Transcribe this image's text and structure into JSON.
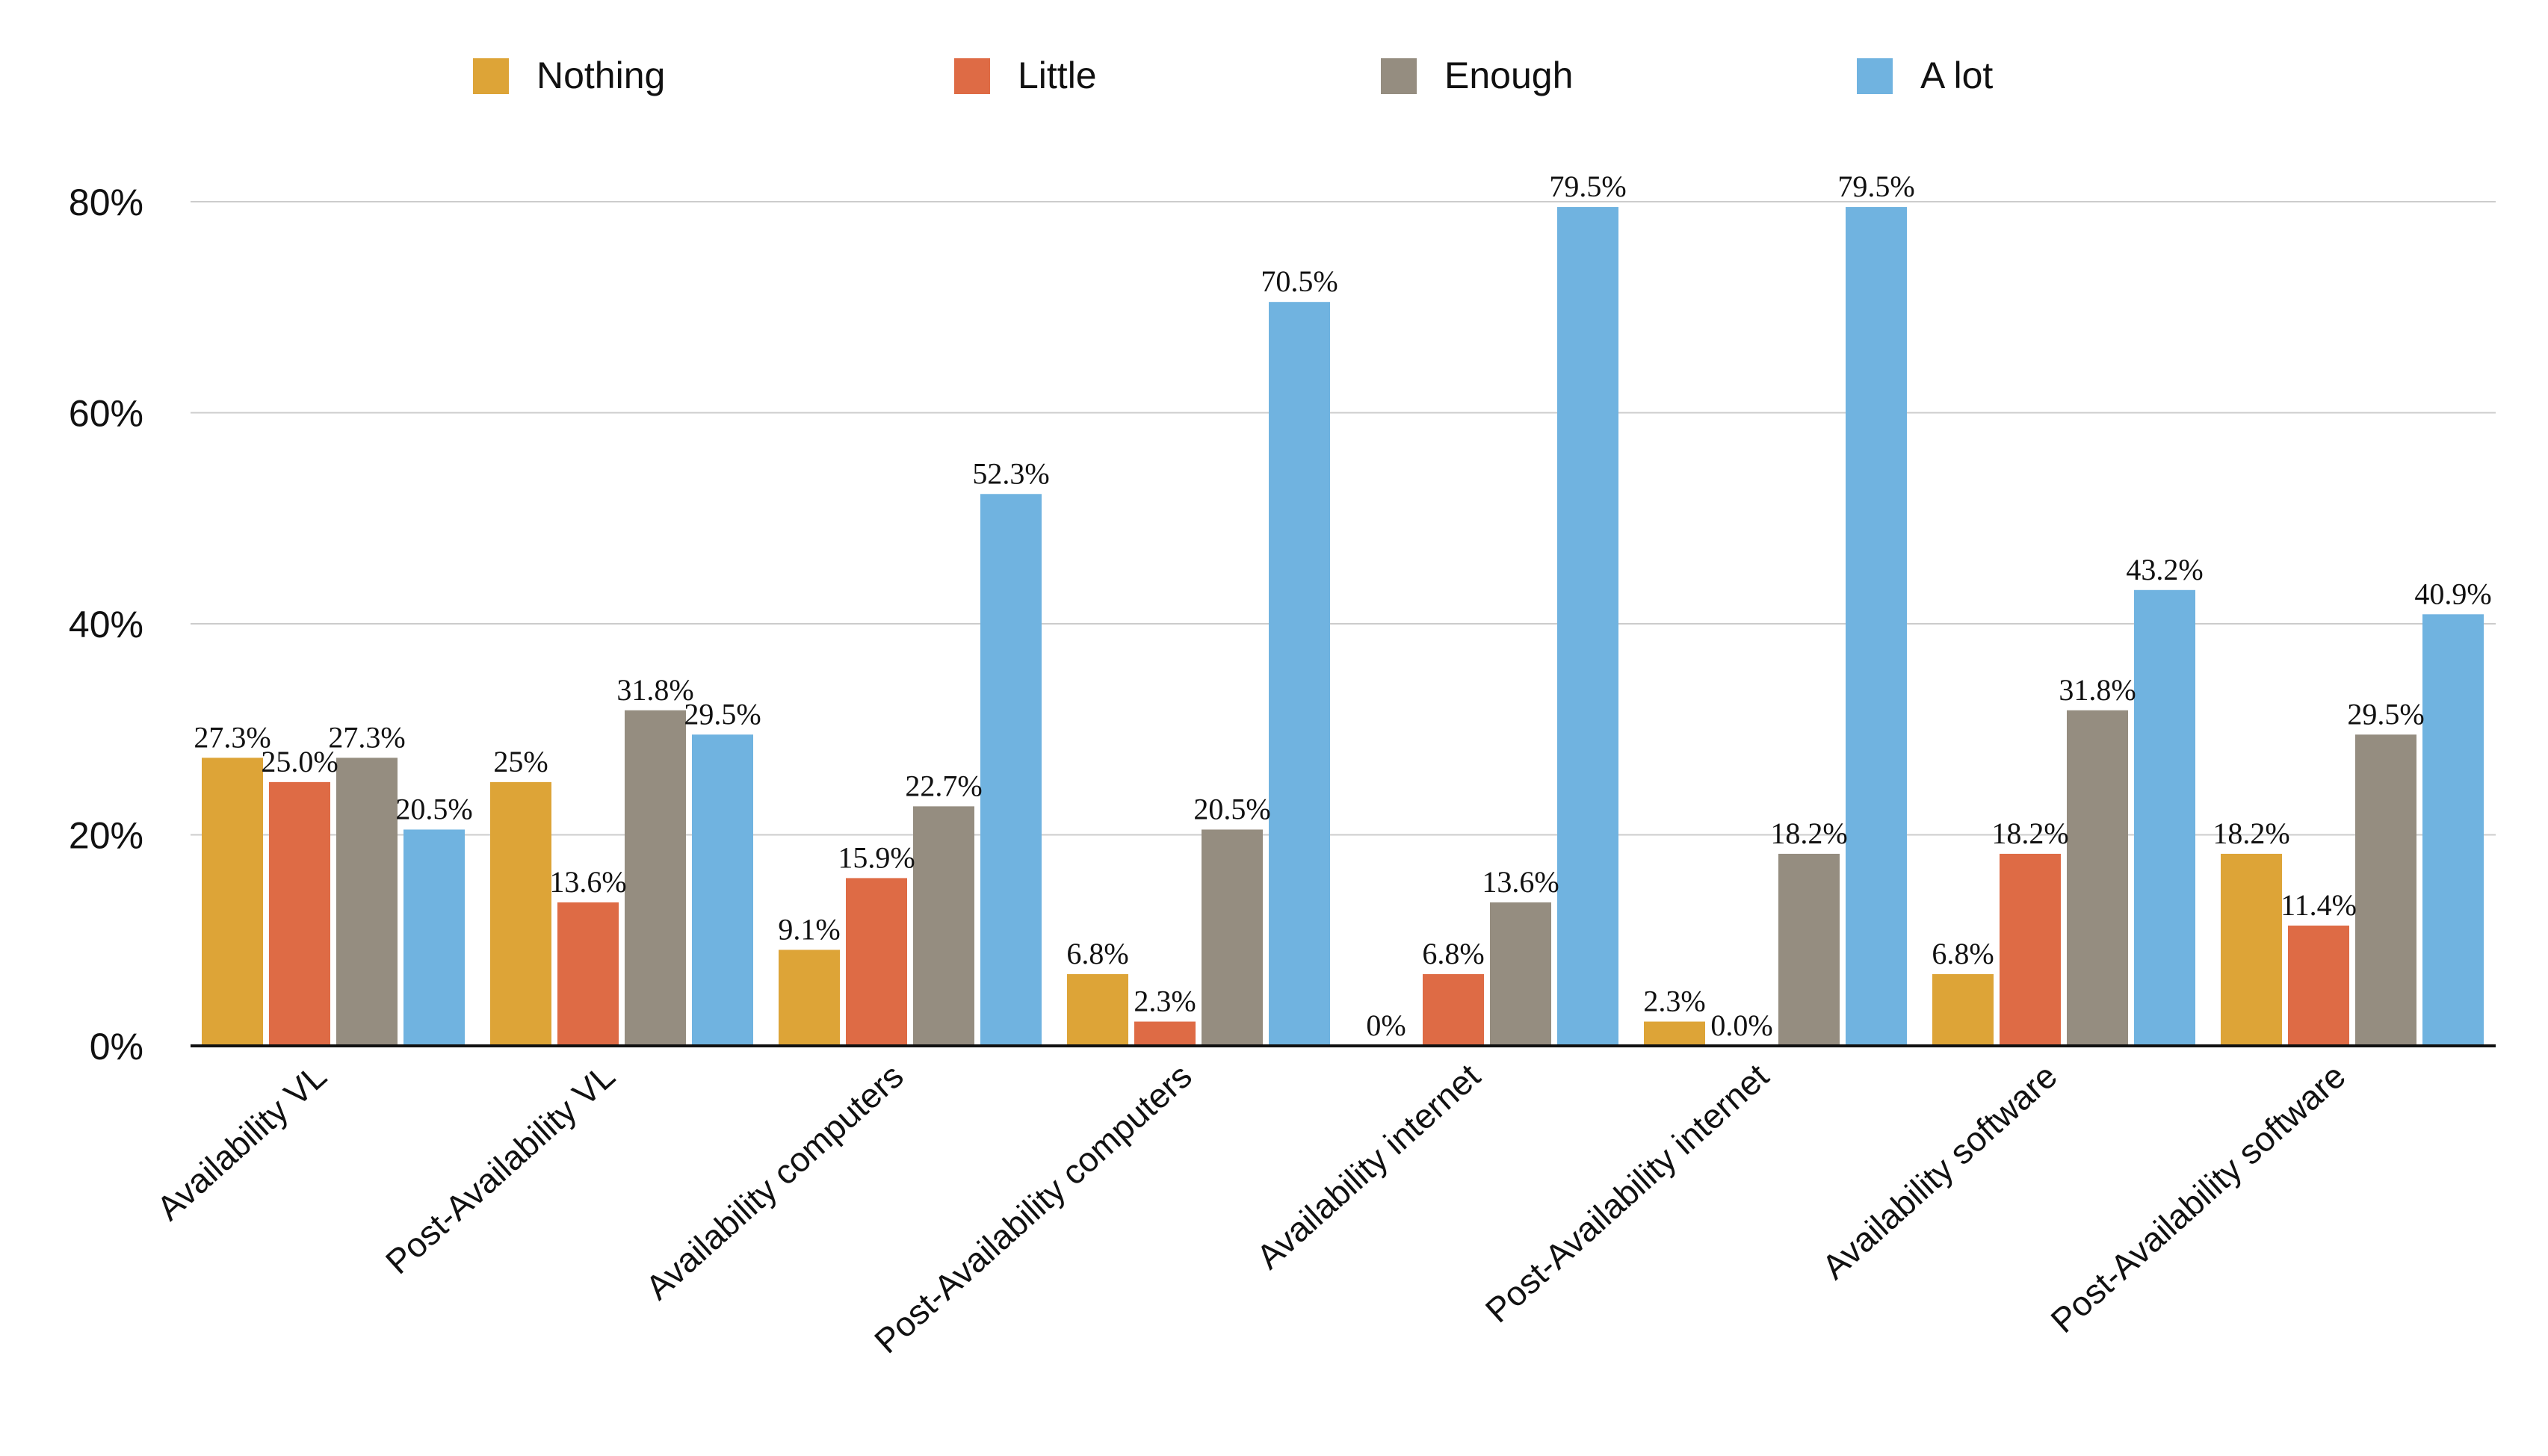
{
  "chart_data": {
    "type": "bar",
    "categories": [
      "Availability VL",
      "Post-Availability VL",
      "Availability computers",
      "Post-Availability computers",
      "Availability internet",
      "Post-Availability internet",
      "Availability software",
      "Post-Availability software"
    ],
    "series": [
      {
        "name": "Nothing",
        "color": "#DDA437",
        "values": [
          27.3,
          25,
          9.1,
          6.8,
          0,
          2.3,
          6.8,
          18.2
        ],
        "labels": [
          "27.3%",
          "25%",
          "9.1%",
          "6.8%",
          "0%",
          "2.3%",
          "6.8%",
          "18.2%"
        ]
      },
      {
        "name": "Little",
        "color": "#DE6B45",
        "values": [
          25.0,
          13.6,
          15.9,
          2.3,
          6.8,
          0.0,
          18.2,
          11.4
        ],
        "labels": [
          "25.0%",
          "13.6%",
          "15.9%",
          "2.3%",
          "6.8%",
          "0.0%",
          "18.2%",
          "11.4%"
        ]
      },
      {
        "name": "Enough",
        "color": "#958D80",
        "values": [
          27.3,
          31.8,
          22.7,
          20.5,
          13.6,
          18.2,
          31.8,
          29.5
        ],
        "labels": [
          "27.3%",
          "31.8%",
          "22.7%",
          "20.5%",
          "13.6%",
          "18.2%",
          "31.8%",
          "29.5%"
        ]
      },
      {
        "name": "A lot",
        "color": "#70B3E0",
        "values": [
          20.5,
          29.5,
          52.3,
          70.5,
          79.5,
          79.5,
          43.2,
          40.9
        ],
        "labels": [
          "20.5%",
          "29.5%",
          "52.3%",
          "70.5%",
          "79.5%",
          "79.5%",
          "43.2%",
          "40.9%"
        ]
      }
    ],
    "yticks": [
      "0%",
      "20%",
      "40%",
      "60%",
      "80%"
    ],
    "ylim": [
      0,
      80
    ],
    "grid": true,
    "legend_position": "top"
  }
}
